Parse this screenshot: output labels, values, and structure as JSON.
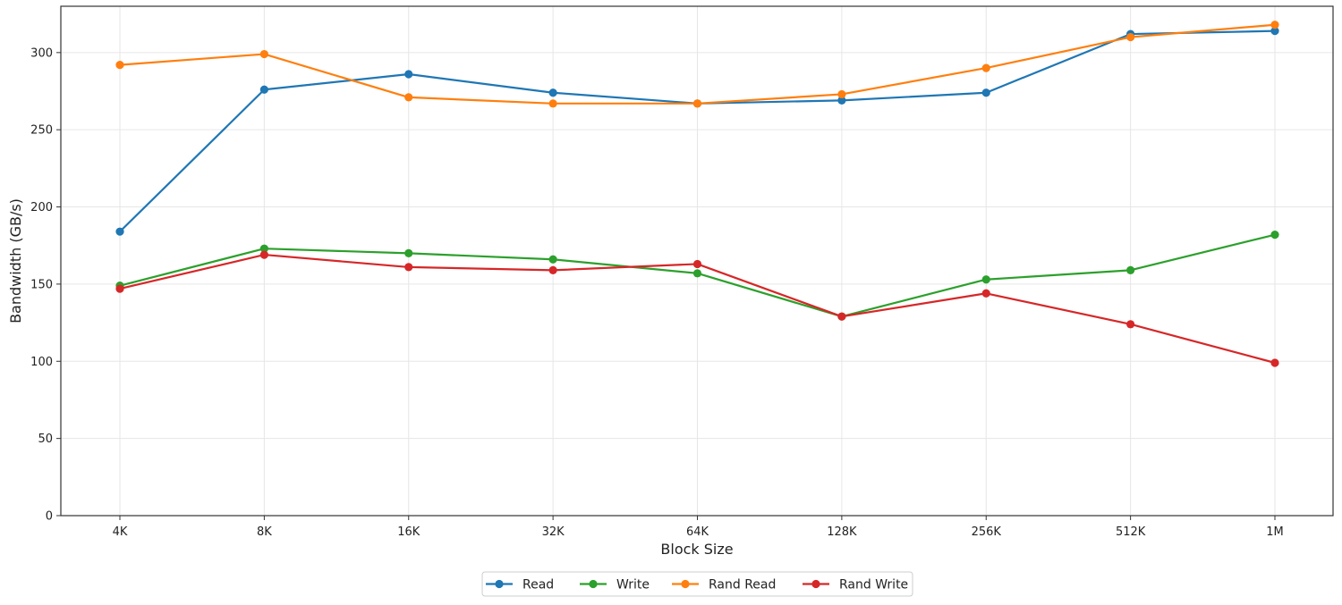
{
  "chart_data": {
    "type": "line",
    "title": "",
    "xlabel": "Block Size",
    "ylabel": "Bandwidth (GB/s)",
    "categories": [
      "4K",
      "8K",
      "16K",
      "32K",
      "64K",
      "128K",
      "256K",
      "512K",
      "1M"
    ],
    "ylim": [
      0,
      330
    ],
    "yticks": [
      0,
      50,
      100,
      150,
      200,
      250,
      300
    ],
    "grid": true,
    "legend_position": "bottom-center",
    "series": [
      {
        "name": "Read",
        "color": "#1f77b4",
        "values": [
          184,
          276,
          286,
          274,
          267,
          269,
          274,
          312,
          314
        ]
      },
      {
        "name": "Write",
        "color": "#2ca02c",
        "values": [
          149,
          173,
          170,
          166,
          157,
          129,
          153,
          159,
          182
        ]
      },
      {
        "name": "Rand Read",
        "color": "#ff7f0e",
        "values": [
          292,
          299,
          271,
          267,
          267,
          273,
          290,
          310,
          318
        ]
      },
      {
        "name": "Rand Write",
        "color": "#d62728",
        "values": [
          147,
          169,
          161,
          159,
          163,
          129,
          144,
          124,
          99
        ]
      }
    ]
  }
}
